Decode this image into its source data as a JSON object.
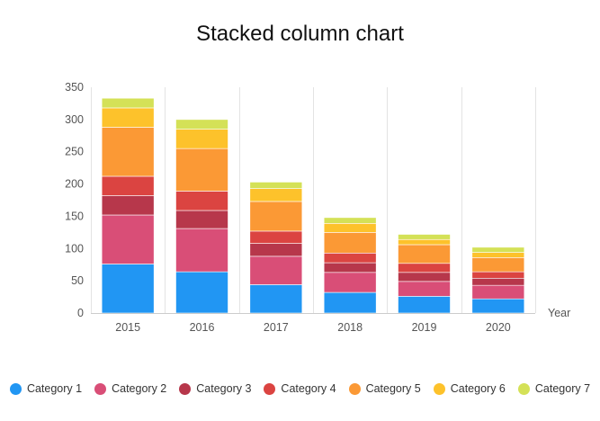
{
  "chart_data": {
    "type": "bar",
    "stacked": true,
    "title": "Stacked column chart",
    "xlabel": "Year",
    "ylabel": "",
    "categories": [
      "2015",
      "2016",
      "2017",
      "2018",
      "2019",
      "2020"
    ],
    "ylim": [
      0,
      350
    ],
    "yticks": [
      "0",
      "50",
      "100",
      "150",
      "200",
      "250",
      "300",
      "350"
    ],
    "grid": "vertical",
    "legend_position": "bottom",
    "series": [
      {
        "name": "Category 1",
        "color": "#2196f3",
        "values": [
          76,
          64,
          44,
          32,
          26,
          22
        ]
      },
      {
        "name": "Category 2",
        "color": "#d94e77",
        "values": [
          76,
          67,
          44,
          31,
          23,
          21
        ]
      },
      {
        "name": "Category 3",
        "color": "#b7374b",
        "values": [
          30,
          28,
          20,
          15,
          14,
          11
        ]
      },
      {
        "name": "Category 4",
        "color": "#db4441",
        "values": [
          30,
          30,
          19,
          15,
          14,
          10
        ]
      },
      {
        "name": "Category 5",
        "color": "#fb9935",
        "values": [
          76,
          66,
          46,
          32,
          29,
          22
        ]
      },
      {
        "name": "Category 6",
        "color": "#fdc22b",
        "values": [
          30,
          30,
          20,
          14,
          8,
          8
        ]
      },
      {
        "name": "Category 7",
        "color": "#d4e157",
        "values": [
          15,
          15,
          10,
          9,
          8,
          8
        ]
      }
    ]
  }
}
